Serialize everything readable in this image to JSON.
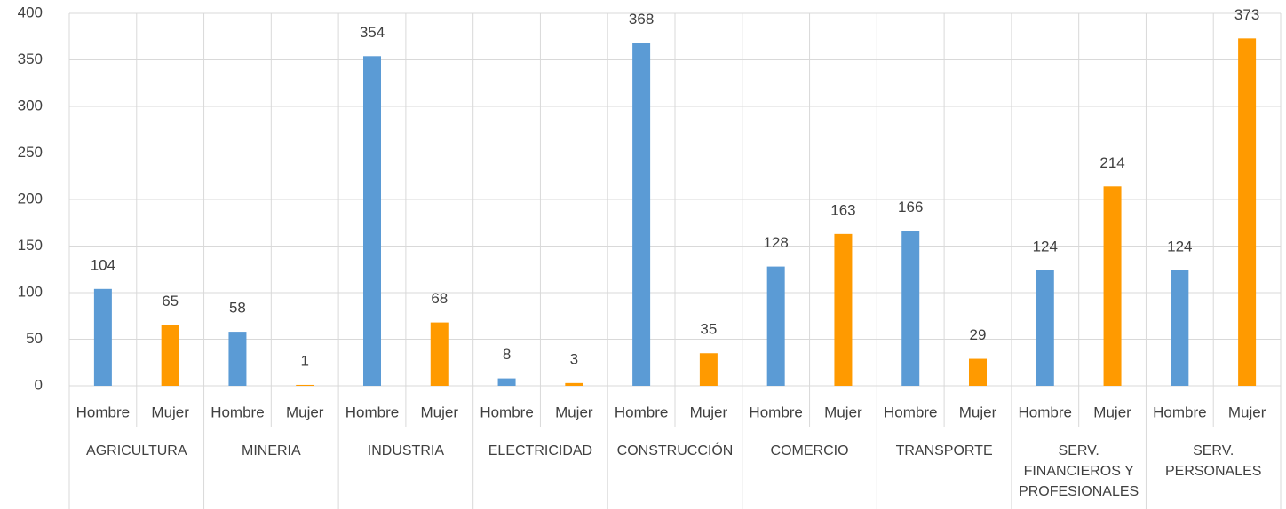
{
  "chart_data": {
    "type": "bar",
    "categories": [
      "AGRICULTURA",
      "MINERIA",
      "INDUSTRIA",
      "ELECTRICIDAD",
      "CONSTRUCCIÓN",
      "COMERCIO",
      "TRANSPORTE",
      "SERV.\nFINANCIEROS Y\nPROFESIONALES",
      "SERV.\nPERSONALES"
    ],
    "series": [
      {
        "name": "Hombre",
        "color": "#5b9bd5",
        "values": [
          104,
          58,
          354,
          8,
          368,
          128,
          166,
          124,
          124
        ]
      },
      {
        "name": "Mujer",
        "color": "#ff9a00",
        "values": [
          65,
          1,
          68,
          3,
          35,
          163,
          29,
          214,
          373
        ]
      }
    ],
    "ylim": [
      0,
      400
    ],
    "yticks": [
      0,
      50,
      100,
      150,
      200,
      250,
      300,
      350,
      400
    ],
    "grid": true
  }
}
